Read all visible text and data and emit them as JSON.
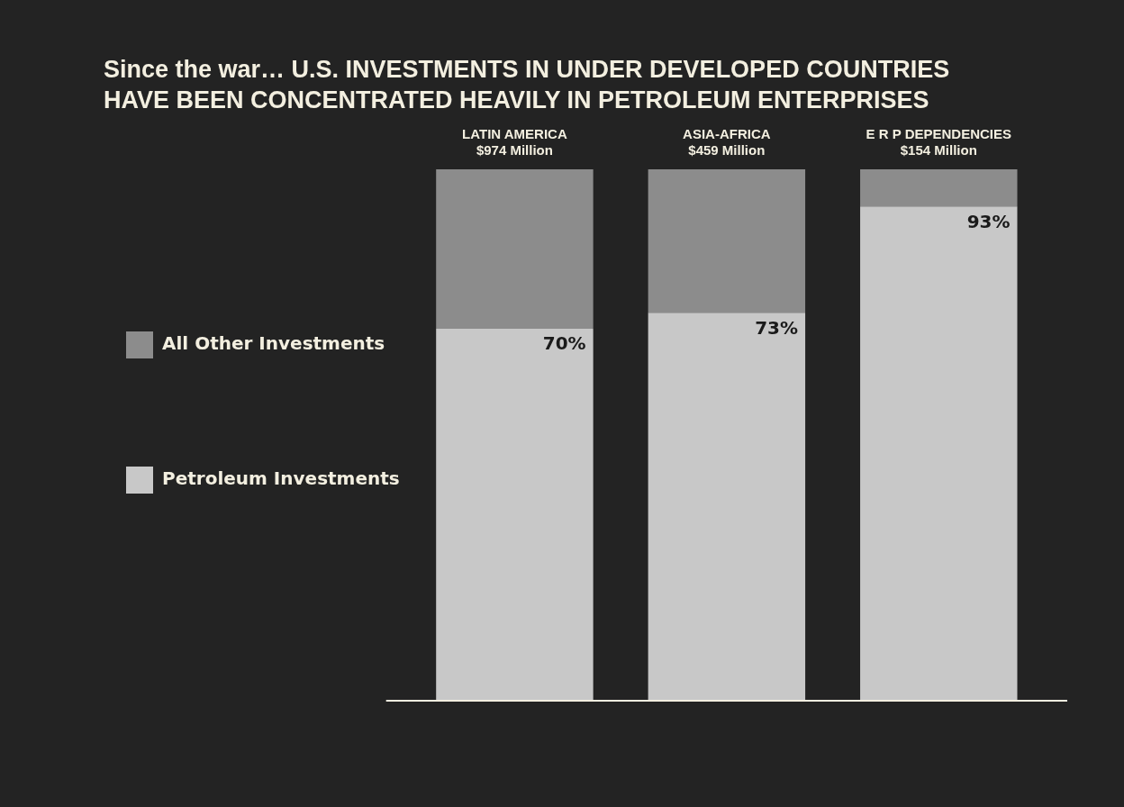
{
  "chart_data": {
    "type": "bar",
    "title": "Since the war… U.S. INVESTMENTS IN UNDER DEVELOPED COUNTRIES HAVE BEEN CONCENTRATED HEAVILY IN PETROLEUM ENTERPRISES",
    "categories": [
      "LATIN AMERICA\n$974 Million",
      "ASIA-AFRICA\n$459 Million",
      "E R P DEPENDENCIES\n$154 Million"
    ],
    "stacked": true,
    "ylim": [
      0,
      100
    ],
    "tick_labels": "x",
    "legend": "left",
    "series": [
      {
        "name": "Petroleum Investments",
        "color": "#c8c8c8",
        "values": [
          70,
          73,
          93
        ],
        "value_labels": [
          "70%",
          "73%",
          "93%"
        ]
      },
      {
        "name": "All Other Investments",
        "color": "#8c8c8c",
        "values": [
          30,
          27,
          7
        ]
      }
    ]
  }
}
